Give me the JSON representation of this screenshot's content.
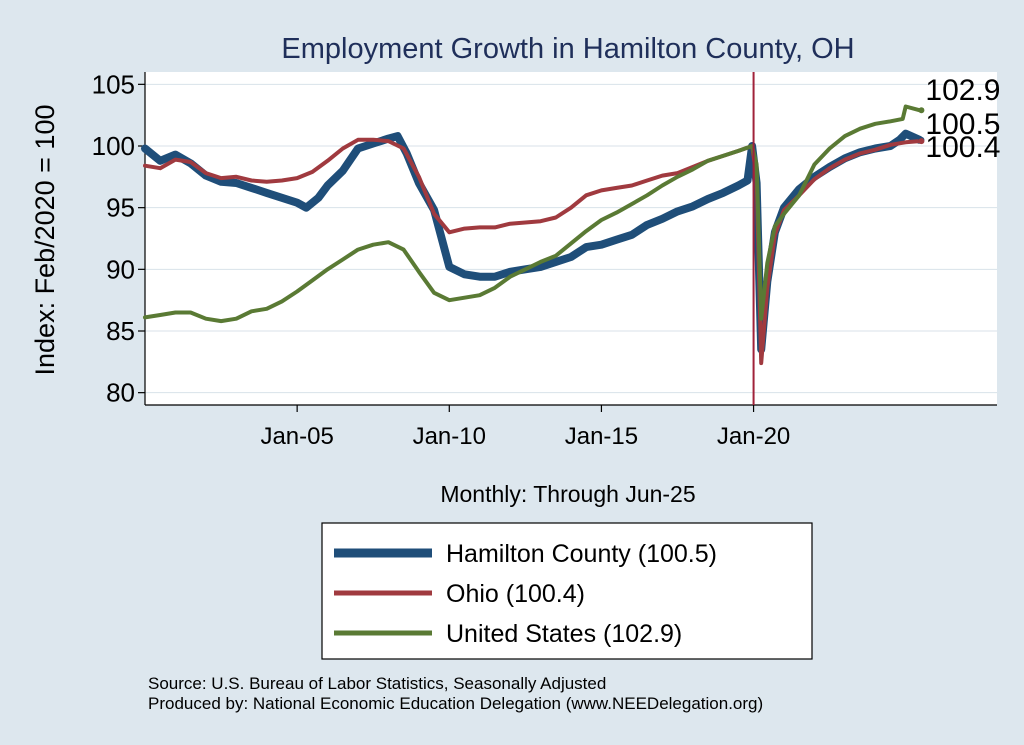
{
  "chart_data": {
    "type": "line",
    "title": "Employment Growth in Hamilton  County, OH",
    "xlabel": "Monthly: Through Jun-25",
    "ylabel": "Index: Feb/2020 = 100",
    "ylim": [
      79,
      106
    ],
    "yticks": [
      80,
      85,
      90,
      95,
      100,
      105
    ],
    "xlim": [
      2000.0,
      2028.0
    ],
    "xticks": [
      {
        "x": 2005.0,
        "label": "Jan-05"
      },
      {
        "x": 2010.0,
        "label": "Jan-10"
      },
      {
        "x": 2015.0,
        "label": "Jan-15"
      },
      {
        "x": 2020.0,
        "label": "Jan-20"
      }
    ],
    "reference_line_x": 2020.0,
    "grid": true,
    "series": [
      {
        "name": "Hamilton  County",
        "legend_label": "Hamilton  County (100.5)",
        "color": "#1f4e79",
        "last_label": "100.5",
        "points": [
          [
            2000.0,
            99.8
          ],
          [
            2000.5,
            98.8
          ],
          [
            2001.0,
            99.3
          ],
          [
            2001.5,
            98.6
          ],
          [
            2002.0,
            97.6
          ],
          [
            2002.5,
            97.1
          ],
          [
            2003.0,
            97.0
          ],
          [
            2003.5,
            96.6
          ],
          [
            2004.0,
            96.2
          ],
          [
            2004.5,
            95.8
          ],
          [
            2005.0,
            95.4
          ],
          [
            2005.3,
            95.0
          ],
          [
            2005.7,
            95.8
          ],
          [
            2006.0,
            96.8
          ],
          [
            2006.5,
            98.0
          ],
          [
            2007.0,
            99.8
          ],
          [
            2007.5,
            100.2
          ],
          [
            2008.0,
            100.6
          ],
          [
            2008.3,
            100.8
          ],
          [
            2008.6,
            99.4
          ],
          [
            2009.0,
            97.0
          ],
          [
            2009.5,
            94.8
          ],
          [
            2010.0,
            90.2
          ],
          [
            2010.5,
            89.6
          ],
          [
            2011.0,
            89.4
          ],
          [
            2011.5,
            89.4
          ],
          [
            2012.0,
            89.8
          ],
          [
            2012.5,
            90.0
          ],
          [
            2013.0,
            90.2
          ],
          [
            2013.5,
            90.6
          ],
          [
            2014.0,
            91.0
          ],
          [
            2014.5,
            91.8
          ],
          [
            2015.0,
            92.0
          ],
          [
            2015.5,
            92.4
          ],
          [
            2016.0,
            92.8
          ],
          [
            2016.5,
            93.6
          ],
          [
            2017.0,
            94.1
          ],
          [
            2017.5,
            94.7
          ],
          [
            2018.0,
            95.1
          ],
          [
            2018.5,
            95.7
          ],
          [
            2019.0,
            96.2
          ],
          [
            2019.5,
            96.8
          ],
          [
            2019.8,
            97.2
          ],
          [
            2019.95,
            100.0
          ],
          [
            2020.1,
            97.0
          ],
          [
            2020.25,
            83.5
          ],
          [
            2020.45,
            89.0
          ],
          [
            2020.7,
            93.0
          ],
          [
            2021.0,
            95.0
          ],
          [
            2021.5,
            96.5
          ],
          [
            2022.0,
            97.5
          ],
          [
            2022.5,
            98.3
          ],
          [
            2023.0,
            99.0
          ],
          [
            2023.5,
            99.5
          ],
          [
            2024.0,
            99.8
          ],
          [
            2024.5,
            100.0
          ],
          [
            2024.8,
            100.5
          ],
          [
            2025.0,
            101.0
          ],
          [
            2025.45,
            100.5
          ]
        ]
      },
      {
        "name": "Ohio",
        "legend_label": "Ohio (100.4)",
        "color": "#a03a3f",
        "last_label": "100.4",
        "points": [
          [
            2000.0,
            98.4
          ],
          [
            2000.5,
            98.2
          ],
          [
            2001.0,
            98.9
          ],
          [
            2001.5,
            98.7
          ],
          [
            2002.0,
            97.8
          ],
          [
            2002.5,
            97.4
          ],
          [
            2003.0,
            97.5
          ],
          [
            2003.5,
            97.2
          ],
          [
            2004.0,
            97.1
          ],
          [
            2004.5,
            97.2
          ],
          [
            2005.0,
            97.4
          ],
          [
            2005.5,
            97.9
          ],
          [
            2006.0,
            98.8
          ],
          [
            2006.5,
            99.8
          ],
          [
            2007.0,
            100.5
          ],
          [
            2007.5,
            100.5
          ],
          [
            2008.0,
            100.4
          ],
          [
            2008.5,
            99.8
          ],
          [
            2009.0,
            97.5
          ],
          [
            2009.5,
            94.5
          ],
          [
            2010.0,
            93.0
          ],
          [
            2010.5,
            93.3
          ],
          [
            2011.0,
            93.4
          ],
          [
            2011.5,
            93.4
          ],
          [
            2012.0,
            93.7
          ],
          [
            2012.5,
            93.8
          ],
          [
            2013.0,
            93.9
          ],
          [
            2013.5,
            94.2
          ],
          [
            2014.0,
            95.0
          ],
          [
            2014.5,
            96.0
          ],
          [
            2015.0,
            96.4
          ],
          [
            2015.5,
            96.6
          ],
          [
            2016.0,
            96.8
          ],
          [
            2016.5,
            97.2
          ],
          [
            2017.0,
            97.6
          ],
          [
            2017.5,
            97.8
          ],
          [
            2018.0,
            98.3
          ],
          [
            2018.5,
            98.8
          ],
          [
            2019.0,
            99.2
          ],
          [
            2019.5,
            99.6
          ],
          [
            2019.95,
            100.0
          ],
          [
            2020.1,
            97.5
          ],
          [
            2020.25,
            82.4
          ],
          [
            2020.45,
            88.5
          ],
          [
            2020.7,
            92.8
          ],
          [
            2021.0,
            94.8
          ],
          [
            2021.5,
            96.0
          ],
          [
            2022.0,
            97.3
          ],
          [
            2022.5,
            98.2
          ],
          [
            2023.0,
            98.9
          ],
          [
            2023.5,
            99.4
          ],
          [
            2024.0,
            99.7
          ],
          [
            2024.5,
            100.1
          ],
          [
            2025.0,
            100.3
          ],
          [
            2025.45,
            100.4
          ]
        ]
      },
      {
        "name": "United States",
        "legend_label": "United States (102.9)",
        "color": "#5a7a34",
        "last_label": "102.9",
        "points": [
          [
            2000.0,
            86.1
          ],
          [
            2000.5,
            86.3
          ],
          [
            2001.0,
            86.5
          ],
          [
            2001.5,
            86.5
          ],
          [
            2002.0,
            86.0
          ],
          [
            2002.5,
            85.8
          ],
          [
            2003.0,
            86.0
          ],
          [
            2003.5,
            86.6
          ],
          [
            2004.0,
            86.8
          ],
          [
            2004.5,
            87.4
          ],
          [
            2005.0,
            88.2
          ],
          [
            2005.5,
            89.1
          ],
          [
            2006.0,
            90.0
          ],
          [
            2006.5,
            90.8
          ],
          [
            2007.0,
            91.6
          ],
          [
            2007.5,
            92.0
          ],
          [
            2008.0,
            92.2
          ],
          [
            2008.5,
            91.6
          ],
          [
            2009.0,
            89.8
          ],
          [
            2009.5,
            88.1
          ],
          [
            2010.0,
            87.5
          ],
          [
            2010.5,
            87.7
          ],
          [
            2011.0,
            87.9
          ],
          [
            2011.5,
            88.5
          ],
          [
            2012.0,
            89.4
          ],
          [
            2012.5,
            90.0
          ],
          [
            2013.0,
            90.6
          ],
          [
            2013.5,
            91.1
          ],
          [
            2014.0,
            92.1
          ],
          [
            2014.5,
            93.1
          ],
          [
            2015.0,
            94.0
          ],
          [
            2015.5,
            94.6
          ],
          [
            2016.0,
            95.3
          ],
          [
            2016.5,
            96.0
          ],
          [
            2017.0,
            96.8
          ],
          [
            2017.5,
            97.5
          ],
          [
            2018.0,
            98.1
          ],
          [
            2018.5,
            98.8
          ],
          [
            2019.0,
            99.2
          ],
          [
            2019.5,
            99.6
          ],
          [
            2019.95,
            100.0
          ],
          [
            2020.1,
            98.5
          ],
          [
            2020.25,
            86.0
          ],
          [
            2020.45,
            90.5
          ],
          [
            2020.7,
            93.5
          ],
          [
            2021.0,
            94.5
          ],
          [
            2021.5,
            96.0
          ],
          [
            2022.0,
            98.5
          ],
          [
            2022.5,
            99.8
          ],
          [
            2023.0,
            100.8
          ],
          [
            2023.5,
            101.4
          ],
          [
            2024.0,
            101.8
          ],
          [
            2024.5,
            102.0
          ],
          [
            2024.9,
            102.2
          ],
          [
            2025.0,
            103.2
          ],
          [
            2025.45,
            102.9
          ]
        ]
      }
    ]
  },
  "notes": {
    "source": "Source: U.S. Bureau of Labor Statistics, Seasonally Adjusted",
    "produced_by": "Produced by: National Economic Education Delegation (www.NEEDelegation.org)"
  }
}
